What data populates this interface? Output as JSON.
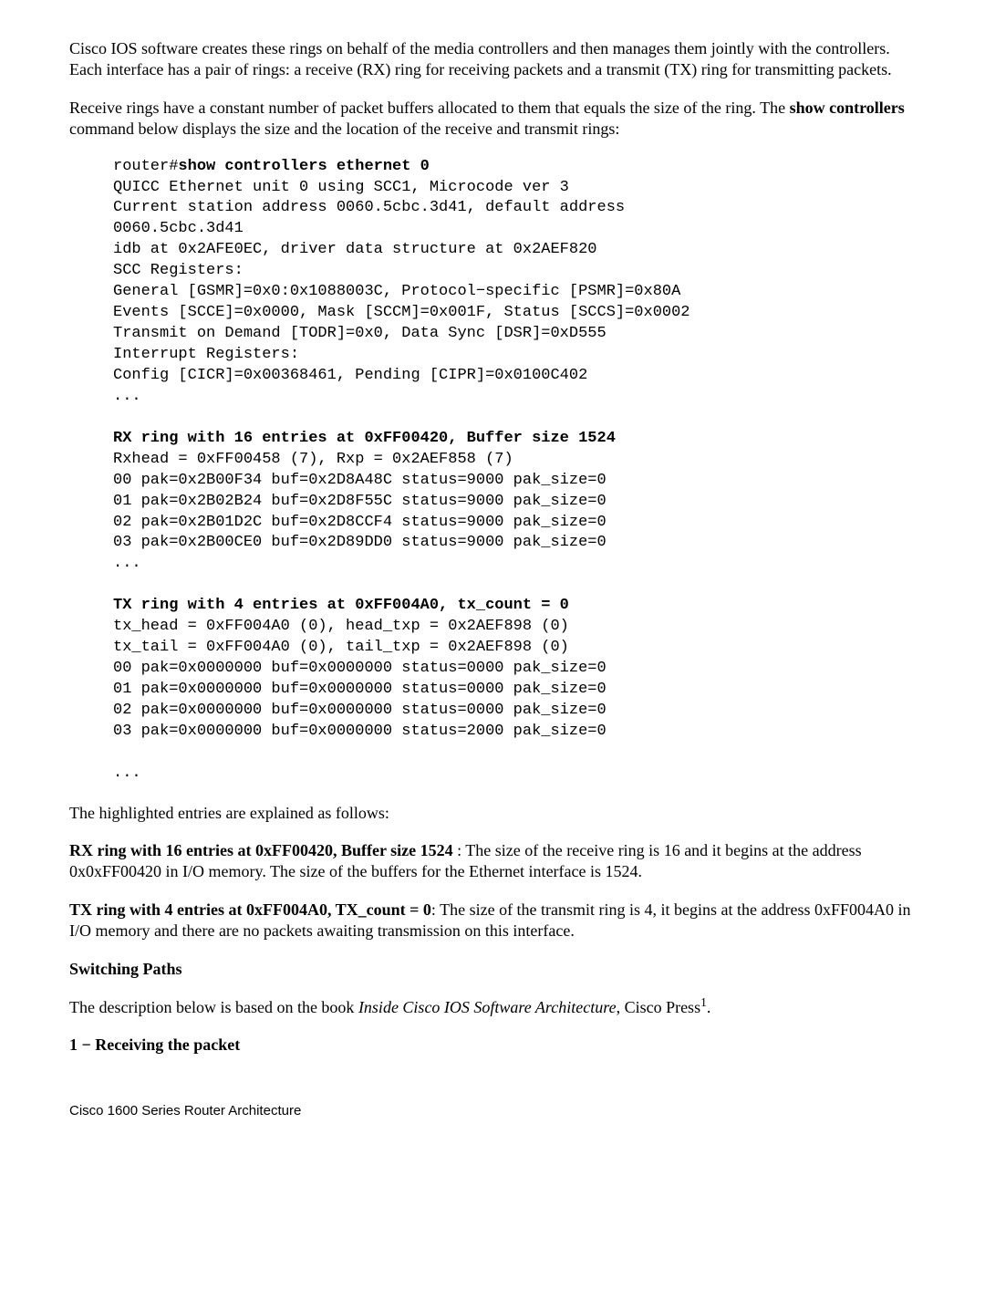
{
  "intro_para1": "Cisco IOS software creates these rings on behalf of the media controllers and then manages them jointly with the controllers. Each interface has a pair of rings: a receive (RX) ring for receiving packets and a transmit (TX) ring for transmitting packets.",
  "intro_para2_pre": "Receive rings have a constant number of packet buffers allocated to them that equals the size of the ring. The ",
  "intro_para2_bold": "show controllers",
  "intro_para2_post": " command below displays the size and the location of the receive and transmit rings:",
  "code": {
    "prompt": "router#",
    "cmd": "show controllers ethernet 0",
    "lines1": [
      "QUICC Ethernet unit 0 using SCC1, Microcode ver 3",
      "Current station address 0060.5cbc.3d41, default address",
      "0060.5cbc.3d41",
      "idb at 0x2AFE0EC, driver data structure at 0x2AEF820",
      "SCC Registers:",
      "General [GSMR]=0x0:0x1088003C, Protocol−specific [PSMR]=0x80A",
      "Events [SCCE]=0x0000, Mask [SCCM]=0x001F, Status [SCCS]=0x0002",
      "Transmit on Demand [TODR]=0x0, Data Sync [DSR]=0xD555",
      "Interrupt Registers:",
      "Config [CICR]=0x00368461, Pending [CIPR]=0x0100C402",
      "..."
    ],
    "rx_header": "RX ring with 16 entries at 0xFF00420, Buffer size 1524",
    "lines2": [
      "Rxhead = 0xFF00458 (7), Rxp = 0x2AEF858 (7)",
      "00 pak=0x2B00F34 buf=0x2D8A48C status=9000 pak_size=0",
      "01 pak=0x2B02B24 buf=0x2D8F55C status=9000 pak_size=0",
      "02 pak=0x2B01D2C buf=0x2D8CCF4 status=9000 pak_size=0",
      "03 pak=0x2B00CE0 buf=0x2D89DD0 status=9000 pak_size=0",
      "..."
    ],
    "tx_header": "TX ring with 4 entries at 0xFF004A0, tx_count = 0",
    "lines3": [
      "tx_head = 0xFF004A0 (0), head_txp = 0x2AEF898 (0)",
      "tx_tail = 0xFF004A0 (0), tail_txp = 0x2AEF898 (0)",
      "00 pak=0x0000000 buf=0x0000000 status=0000 pak_size=0",
      "01 pak=0x0000000 buf=0x0000000 status=0000 pak_size=0",
      "02 pak=0x0000000 buf=0x0000000 status=0000 pak_size=0",
      "03 pak=0x0000000 buf=0x0000000 status=2000 pak_size=0",
      "",
      "..."
    ]
  },
  "explain_intro": "The highlighted entries are explained as follows:",
  "rx_expl_bold": "RX ring with 16 entries at 0xFF00420, Buffer size 1524",
  "rx_expl_rest": " : The size of the receive ring is 16 and it begins at the address 0x0xFF00420 in I/O memory. The size of the buffers for the Ethernet interface is 1524.",
  "tx_expl_bold": "TX ring with 4 entries at 0xFF004A0, TX_count = 0",
  "tx_expl_rest": ": The size of the transmit ring is 4, it begins at the address 0xFF004A0 in I/O memory and there are no packets awaiting transmission on this interface.",
  "switching_heading": "Switching Paths",
  "switching_text_pre": "The description below is based on the book ",
  "switching_text_italic": "Inside Cisco IOS Software Architecture",
  "switching_text_post1": ", Cisco Press",
  "switching_sup": "1",
  "switching_text_post2": ".",
  "step1_heading": "1 − Receiving the packet",
  "footer": "Cisco 1600 Series Router Architecture"
}
